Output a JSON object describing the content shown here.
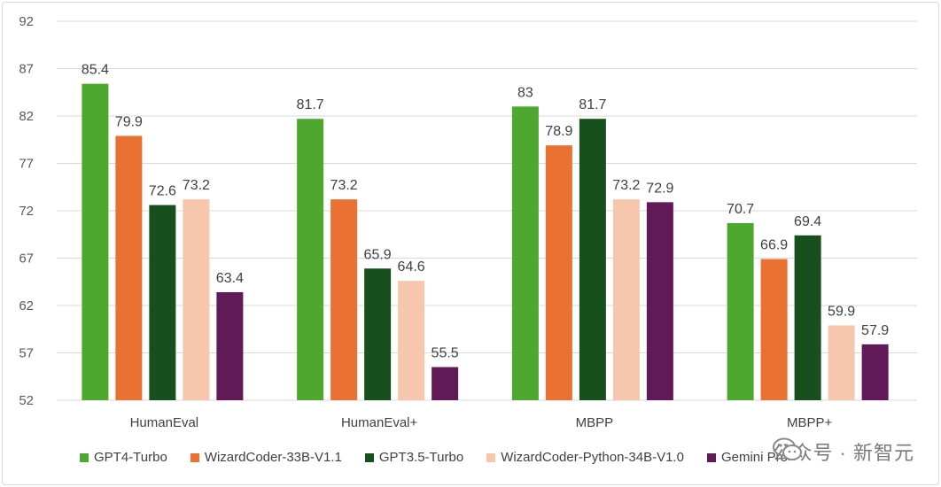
{
  "chart_data": {
    "type": "bar",
    "categories": [
      "HumanEval",
      "HumanEval+",
      "MBPP",
      "MBPP+"
    ],
    "series": [
      {
        "name": "GPT4-Turbo",
        "color": "#4ea72e",
        "values": [
          85.4,
          81.7,
          83,
          70.7
        ]
      },
      {
        "name": "WizardCoder-33B-V1.1",
        "color": "#e97132",
        "values": [
          79.9,
          73.2,
          78.9,
          66.9
        ]
      },
      {
        "name": "GPT3.5-Turbo",
        "color": "#17501c",
        "values": [
          72.6,
          65.9,
          81.7,
          69.4
        ]
      },
      {
        "name": "WizardCoder-Python-34B-V1.0",
        "color": "#f6c6ad",
        "values": [
          73.2,
          64.6,
          73.2,
          59.9
        ]
      },
      {
        "name": "Gemini Pro",
        "color": "#5f1a57",
        "values": [
          63.4,
          55.5,
          72.9,
          57.9
        ]
      }
    ],
    "ylim": [
      52,
      92
    ],
    "yticks": [
      52,
      57,
      62,
      67,
      72,
      77,
      82,
      87,
      92
    ],
    "grid": true,
    "legend": "bottom",
    "title": "",
    "xlabel": "",
    "ylabel": ""
  },
  "watermark": {
    "text": "公众号 · 新智元",
    "icon": "wechat-icon"
  }
}
